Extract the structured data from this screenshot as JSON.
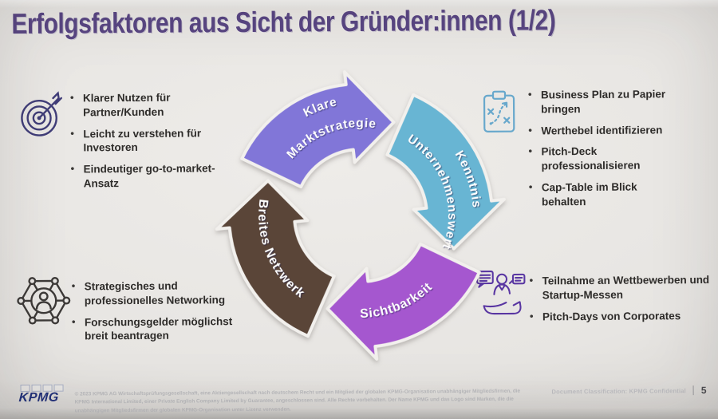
{
  "title": "Erfolgsfaktoren aus Sicht der Gründer:innen (1/2)",
  "accent_color": "#594683",
  "sections": {
    "market_strategy": {
      "icon": "target-icon",
      "bullets": [
        "Klarer Nutzen für Partner/Kunden",
        "Leicht zu verstehen für Investoren",
        "Eindeutiger go-to-market-Ansatz"
      ]
    },
    "company_value": {
      "icon": "strategy-clipboard-icon",
      "bullets": [
        "Business Plan zu Papier bringen",
        "Werthebel identifizieren",
        "Pitch-Deck professionalisieren",
        "Cap-Table im Blick behalten"
      ]
    },
    "network": {
      "icon": "network-icon",
      "bullets": [
        "Strategisches und professionelles Networking",
        "Forschungsgelder möglichst breit beantragen"
      ]
    },
    "visibility": {
      "icon": "people-pitch-icon",
      "bullets": [
        "Teilnahme an Wettbewerben und Startup-Messen",
        "Pitch-Days von Corporates"
      ]
    }
  },
  "diagram": {
    "type": "cycle",
    "arrows": [
      {
        "id": "market-strategy",
        "label": "Klare Marktstrategie",
        "line1": "Klare",
        "line2": "Marktstrategie",
        "color": "#8176d8"
      },
      {
        "id": "company-value",
        "label": "Kenntnis Unternehmenswert",
        "line1": "Kenntnis",
        "line2": "Unternehmenswert",
        "color": "#68b5d3"
      },
      {
        "id": "visibility",
        "label": "Sichtbarkeit",
        "line1": "Sichtbarkeit",
        "color": "#a557cf"
      },
      {
        "id": "network",
        "label": "Breites Netzwerk",
        "line1": "Breites Netzwerk",
        "color": "#5a4538"
      }
    ]
  },
  "footer": {
    "logo_text": "KPMG",
    "legal": "© 2023 KPMG AG Wirtschaftsprüfungsgesellschaft, eine Aktiengesellschaft nach deutschem Recht und ein Mitglied der globalen KPMG-Organisation unabhängiger Mitgliedsfirmen, die KPMG International Limited, einer Private English Company Limited by Guarantee, angeschlossen sind. Alle Rechte vorbehalten. Der Name KPMG und das Logo sind Marken, die die unabhängigen Mitgliedsfirmen der globalen KPMG-Organisation unter Lizenz verwenden.",
    "classification": "Document Classification: KPMG Confidential",
    "page_number": "5"
  }
}
